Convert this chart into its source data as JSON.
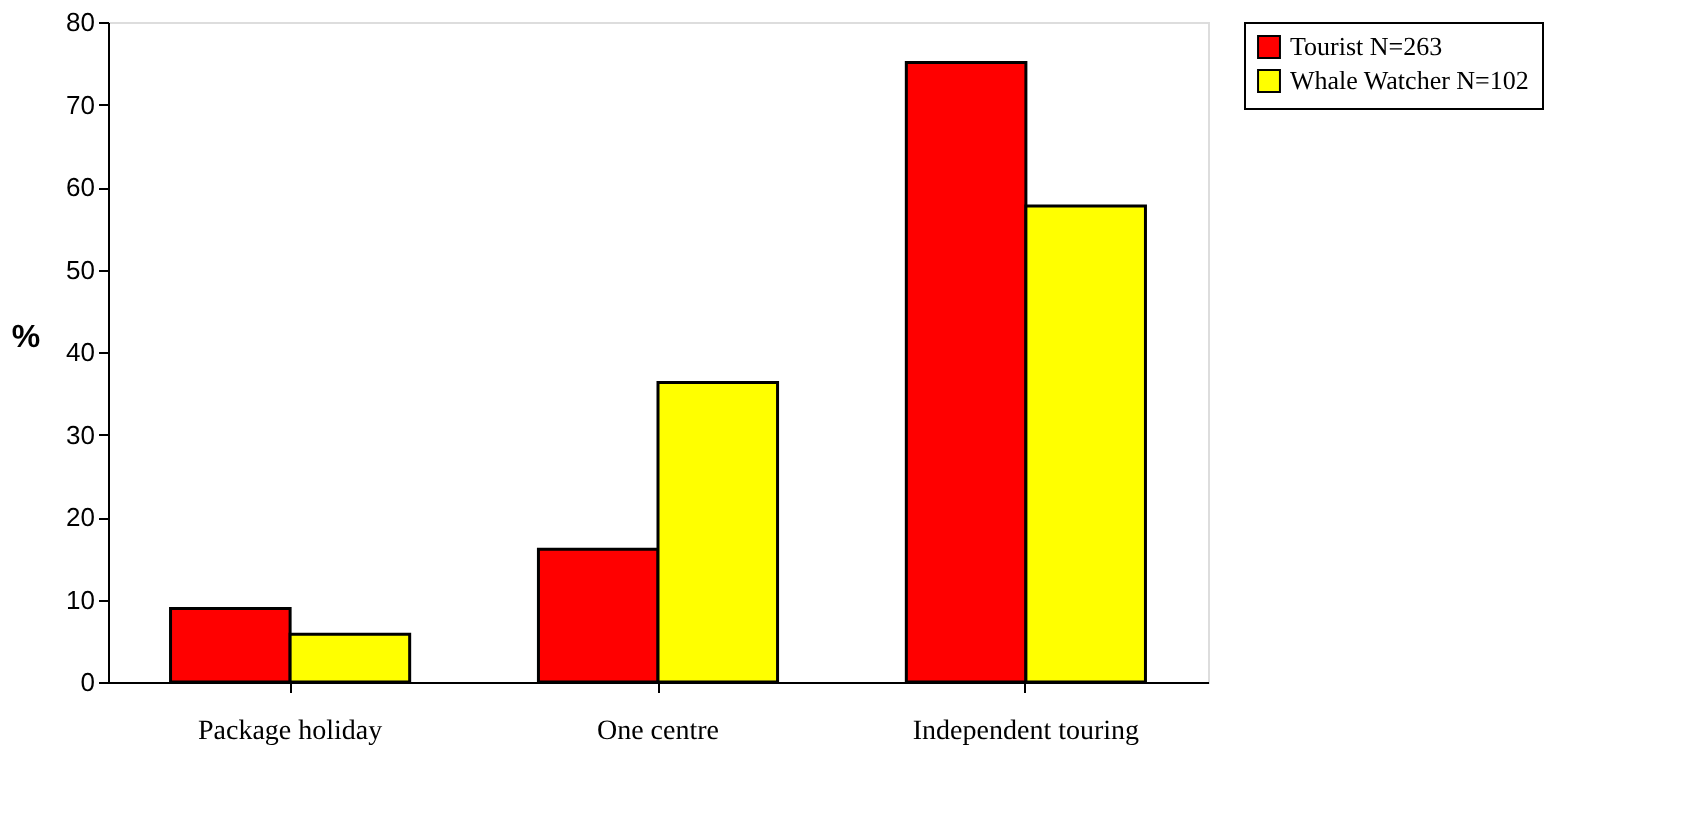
{
  "chart_data": {
    "type": "bar",
    "ylabel": "%",
    "categories": [
      "Package holiday",
      "One centre",
      "Independent touring"
    ],
    "series": [
      {
        "name": "Tourist N=263",
        "color": "#ff0000",
        "values": [
          8.9,
          16.1,
          75.1
        ]
      },
      {
        "name": "Whale Watcher N=102",
        "color": "#ffff00",
        "values": [
          5.8,
          36.3,
          57.7
        ]
      }
    ],
    "ylim": [
      0,
      80
    ],
    "yticks": [
      0,
      10,
      20,
      30,
      40,
      50,
      60,
      70,
      80
    ],
    "grid": false,
    "legend": "right"
  }
}
